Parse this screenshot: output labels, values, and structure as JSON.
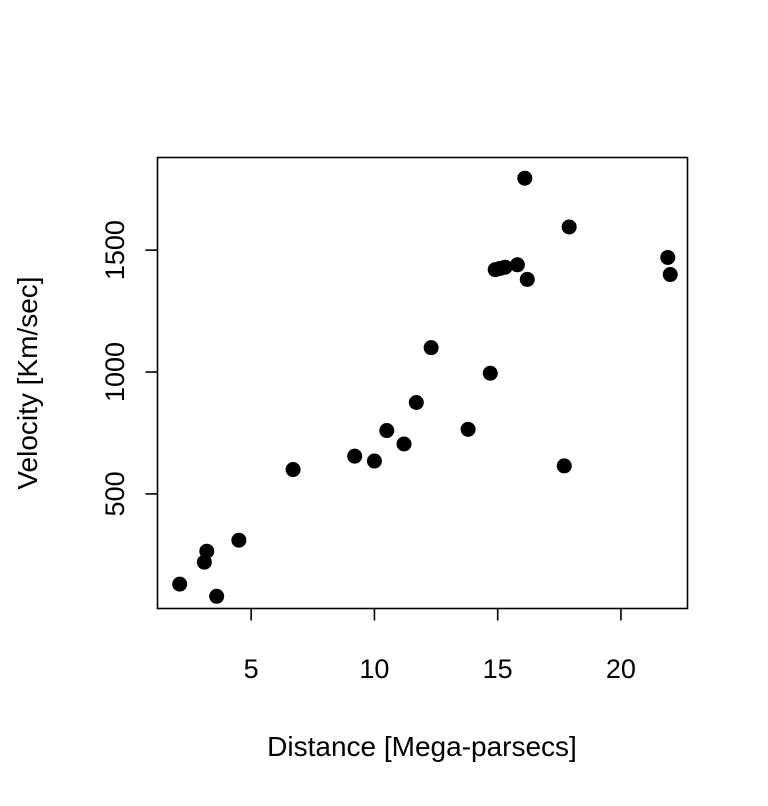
{
  "chart_data": {
    "type": "scatter",
    "title": "",
    "xlabel": "Distance [Mega-parsecs]",
    "ylabel": "Velocity [Km/sec]",
    "xlim": [
      1.2,
      22.7
    ],
    "ylim": [
      30,
      1880
    ],
    "xticks": [
      5,
      10,
      15,
      20
    ],
    "yticks": [
      500,
      1000,
      1500
    ],
    "grid": false,
    "legend": "none",
    "point_color": "#000000",
    "series": [
      {
        "points": [
          {
            "x": 2.1,
            "y": 130
          },
          {
            "x": 3.1,
            "y": 220
          },
          {
            "x": 3.2,
            "y": 265
          },
          {
            "x": 3.6,
            "y": 80
          },
          {
            "x": 4.5,
            "y": 310
          },
          {
            "x": 6.7,
            "y": 600
          },
          {
            "x": 9.2,
            "y": 655
          },
          {
            "x": 10.0,
            "y": 635
          },
          {
            "x": 10.5,
            "y": 760
          },
          {
            "x": 11.2,
            "y": 705
          },
          {
            "x": 11.7,
            "y": 875
          },
          {
            "x": 12.3,
            "y": 1100
          },
          {
            "x": 13.8,
            "y": 765
          },
          {
            "x": 14.7,
            "y": 995
          },
          {
            "x": 14.9,
            "y": 1420
          },
          {
            "x": 15.1,
            "y": 1425
          },
          {
            "x": 15.3,
            "y": 1430
          },
          {
            "x": 15.8,
            "y": 1440
          },
          {
            "x": 16.1,
            "y": 1795
          },
          {
            "x": 16.2,
            "y": 1380
          },
          {
            "x": 17.7,
            "y": 615
          },
          {
            "x": 17.9,
            "y": 1595
          },
          {
            "x": 21.9,
            "y": 1470
          },
          {
            "x": 22.0,
            "y": 1400
          }
        ]
      }
    ]
  }
}
